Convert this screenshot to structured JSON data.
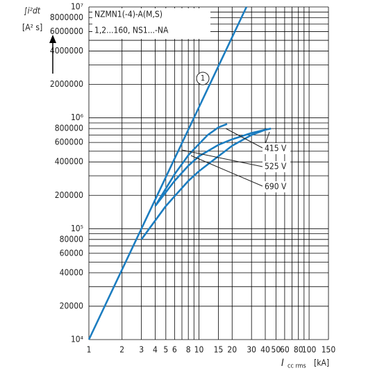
{
  "chart_data": {
    "type": "line",
    "title": "NZMN1(-4)-A(M,S)",
    "subtitle": "1,2...160, NS1...-NA",
    "y_label": {
      "symbol": "∫i²dt",
      "unit": "[A² s]"
    },
    "x_label": {
      "symbol": "I",
      "subscript": "cc rms",
      "unit": "[kA]"
    },
    "log_x": true,
    "log_y": true,
    "grid": true,
    "xlim": [
      1,
      150
    ],
    "ylim": [
      10000,
      10000000
    ],
    "xticks": [
      1,
      2,
      3,
      4,
      5,
      6,
      8,
      10,
      15,
      20,
      30,
      40,
      50,
      60,
      80,
      100,
      150
    ],
    "x_minor_grid": [
      7,
      9,
      70,
      90
    ],
    "yticks": [
      {
        "value": 10000,
        "label": "10⁴"
      },
      20000,
      40000,
      60000,
      80000,
      {
        "value": 100000,
        "label": "10⁵"
      },
      200000,
      400000,
      600000,
      800000,
      {
        "value": 1000000,
        "label": "10⁶"
      },
      2000000,
      4000000,
      6000000,
      8000000,
      {
        "value": 10000000,
        "label": "10⁷"
      }
    ],
    "y_minor_grid": [
      30000,
      50000,
      70000,
      90000,
      300000,
      500000,
      700000,
      900000,
      3000000,
      5000000,
      7000000,
      9000000
    ],
    "series": [
      {
        "name": "1",
        "color": "#1c7dc0",
        "x": [
          1,
          27
        ],
        "values": [
          10000,
          10000000
        ]
      },
      {
        "name": "415 V",
        "color": "#1c7dc0",
        "x": [
          4,
          6,
          8,
          10,
          12,
          15,
          18
        ],
        "values": [
          160000,
          310000,
          460000,
          580000,
          700000,
          820000,
          880000
        ]
      },
      {
        "name": "525 V",
        "color": "#1c7dc0",
        "x": [
          4,
          6,
          8,
          10,
          15,
          20,
          30,
          40,
          45
        ],
        "values": [
          160000,
          270000,
          370000,
          450000,
          570000,
          640000,
          730000,
          780000,
          800000
        ]
      },
      {
        "name": "690 V",
        "color": "#1c7dc0",
        "x": [
          3,
          5,
          8,
          10,
          15,
          20,
          30,
          40,
          45
        ],
        "values": [
          80000,
          160000,
          270000,
          330000,
          450000,
          560000,
          700000,
          780000,
          800000
        ]
      }
    ]
  }
}
